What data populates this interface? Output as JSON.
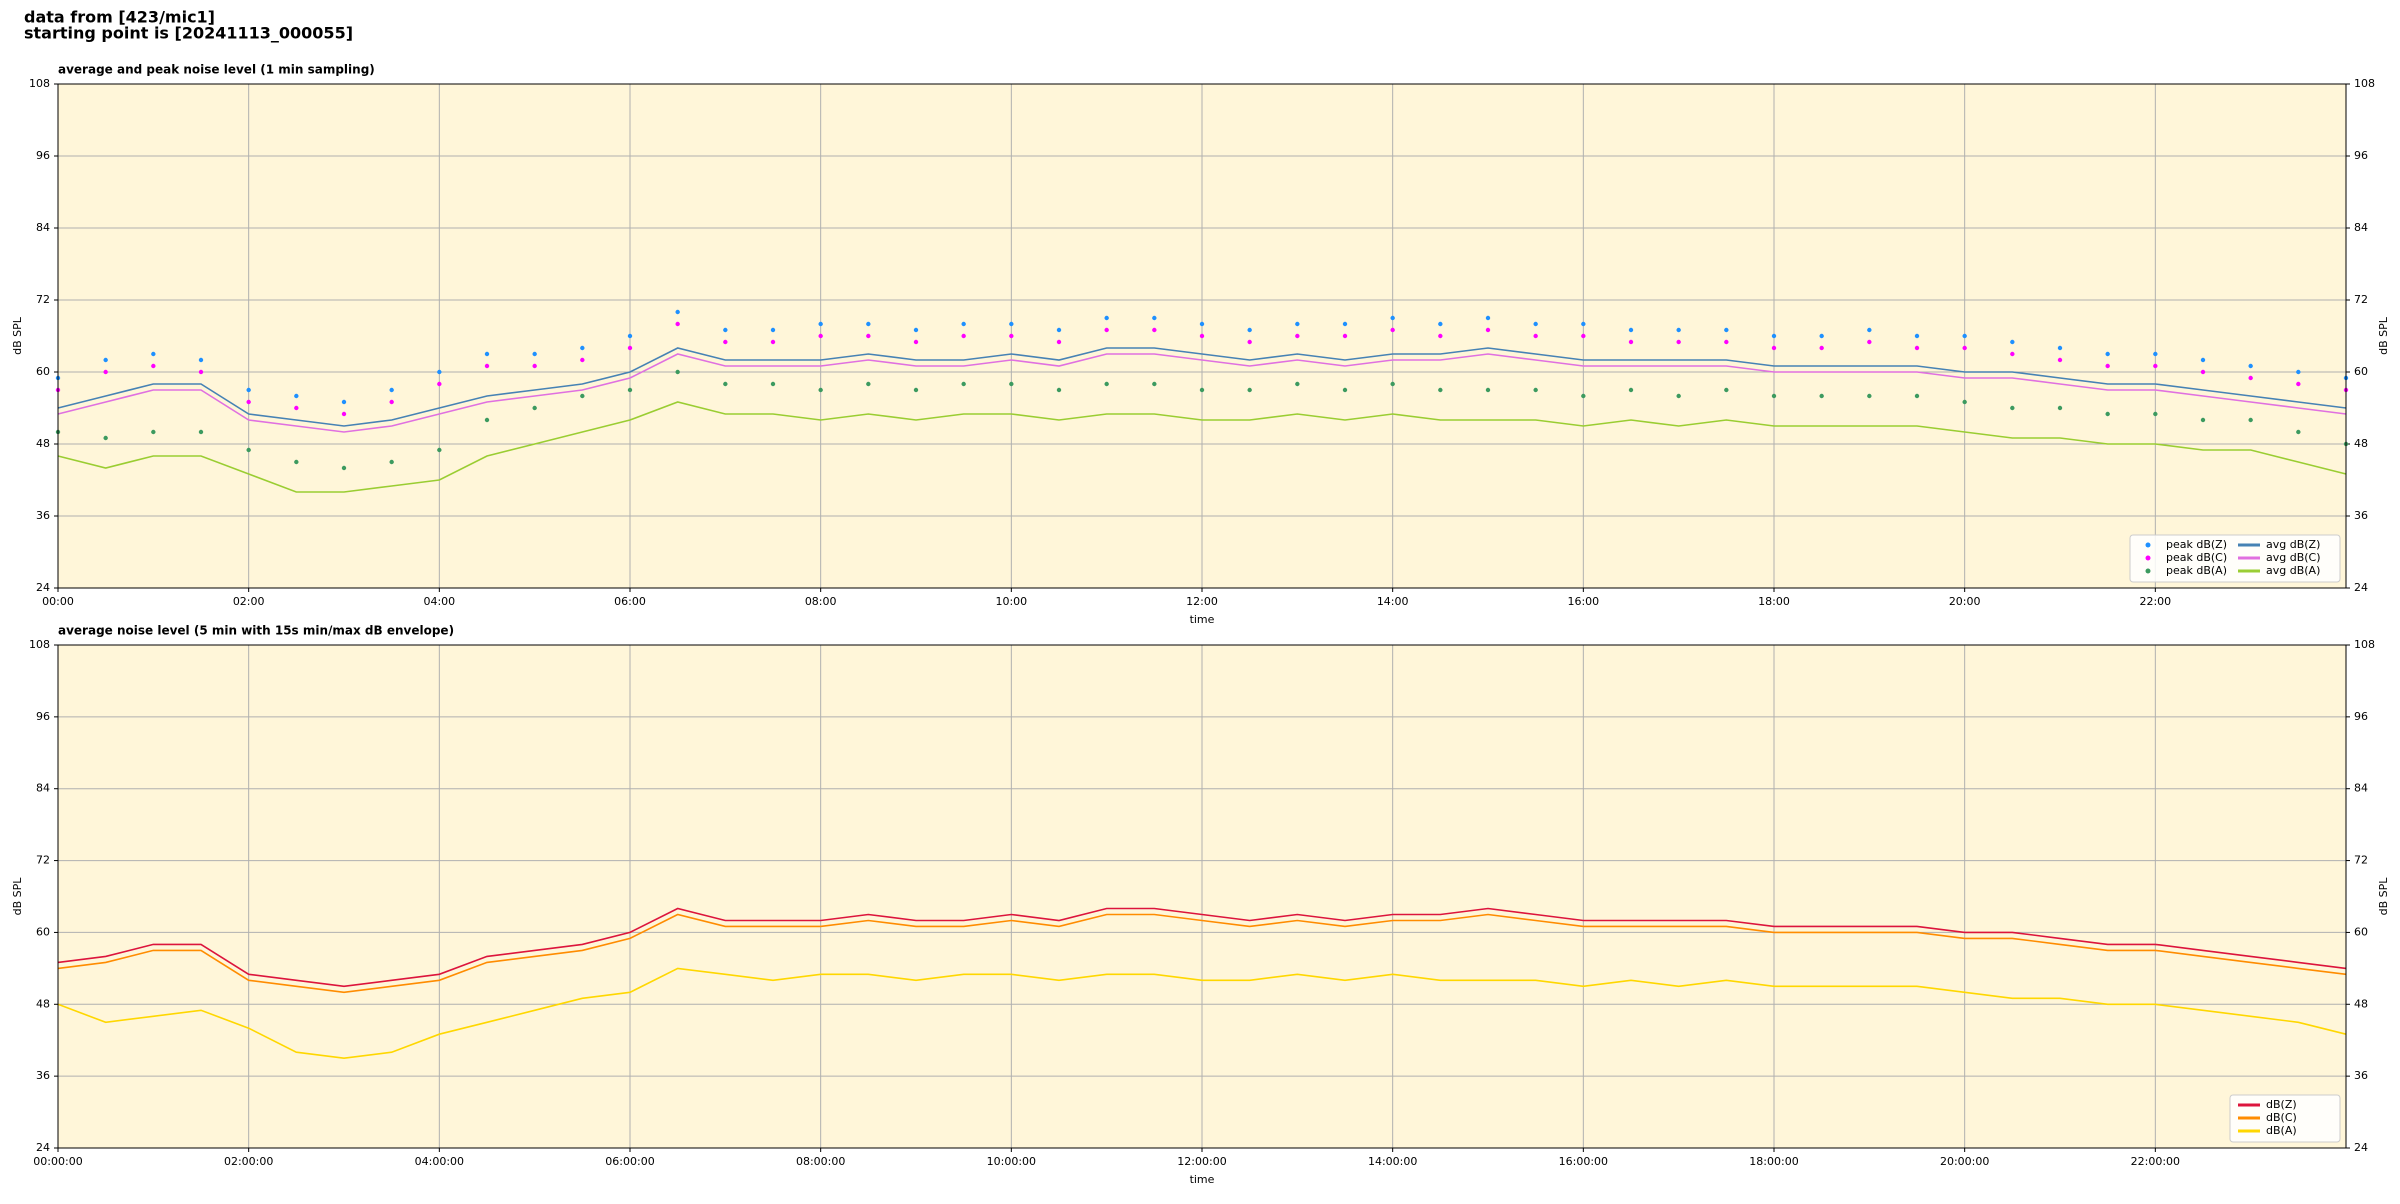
{
  "header": {
    "line1": "data from [423/mic1]",
    "line2": "starting point is [20241113_000055]"
  },
  "chart_data": [
    {
      "type": "line",
      "title": "average and peak noise level (1 min sampling)",
      "xlabel": "time",
      "ylabel": "dB SPL",
      "x": [
        0,
        0.5,
        1,
        1.5,
        2,
        2.5,
        3,
        3.5,
        4,
        4.5,
        5,
        5.5,
        6,
        6.5,
        7,
        7.5,
        8,
        8.5,
        9,
        9.5,
        10,
        10.5,
        11,
        11.5,
        12,
        12.5,
        13,
        13.5,
        14,
        14.5,
        15,
        15.5,
        16,
        16.5,
        17,
        17.5,
        18,
        18.5,
        19,
        19.5,
        20,
        20.5,
        21,
        21.5,
        22,
        22.5,
        23,
        23.5,
        24
      ],
      "xlim": [
        0,
        24
      ],
      "xticks": [
        {
          "value": 0,
          "label": "00:00"
        },
        {
          "value": 2,
          "label": "02:00"
        },
        {
          "value": 4,
          "label": "04:00"
        },
        {
          "value": 6,
          "label": "06:00"
        },
        {
          "value": 8,
          "label": "08:00"
        },
        {
          "value": 10,
          "label": "10:00"
        },
        {
          "value": 12,
          "label": "12:00"
        },
        {
          "value": 14,
          "label": "14:00"
        },
        {
          "value": 16,
          "label": "16:00"
        },
        {
          "value": 18,
          "label": "18:00"
        },
        {
          "value": 20,
          "label": "20:00"
        },
        {
          "value": 22,
          "label": "22:00"
        }
      ],
      "ylim": [
        24,
        108
      ],
      "yticks": [
        24,
        36,
        48,
        60,
        72,
        84,
        96,
        108
      ],
      "grid": true,
      "legend": "lower right",
      "legend_columns": 2,
      "series": [
        {
          "name": "peak dB(Z)",
          "kind": "scatter",
          "color": "#1e90ff",
          "values": [
            59,
            62,
            63,
            62,
            57,
            56,
            55,
            57,
            60,
            63,
            63,
            64,
            66,
            70,
            67,
            67,
            68,
            68,
            67,
            68,
            68,
            67,
            69,
            69,
            68,
            67,
            68,
            68,
            69,
            68,
            69,
            68,
            68,
            67,
            67,
            67,
            66,
            66,
            67,
            66,
            66,
            65,
            64,
            63,
            63,
            62,
            61,
            60,
            59
          ]
        },
        {
          "name": "peak dB(C)",
          "kind": "scatter",
          "color": "#ff00ff",
          "values": [
            57,
            60,
            61,
            60,
            55,
            54,
            53,
            55,
            58,
            61,
            61,
            62,
            64,
            68,
            65,
            65,
            66,
            66,
            65,
            66,
            66,
            65,
            67,
            67,
            66,
            65,
            66,
            66,
            67,
            66,
            67,
            66,
            66,
            65,
            65,
            65,
            64,
            64,
            65,
            64,
            64,
            63,
            62,
            61,
            61,
            60,
            59,
            58,
            57
          ]
        },
        {
          "name": "peak dB(A)",
          "kind": "scatter",
          "color": "#3c9a5f",
          "values": [
            50,
            49,
            50,
            50,
            47,
            45,
            44,
            45,
            47,
            52,
            54,
            56,
            57,
            60,
            58,
            58,
            57,
            58,
            57,
            58,
            58,
            57,
            58,
            58,
            57,
            57,
            58,
            57,
            58,
            57,
            57,
            57,
            56,
            57,
            56,
            57,
            56,
            56,
            56,
            56,
            55,
            54,
            54,
            53,
            53,
            52,
            52,
            50,
            48
          ]
        },
        {
          "name": "avg dB(Z)",
          "kind": "line",
          "color": "#4682b4",
          "values": [
            54,
            56,
            58,
            58,
            53,
            52,
            51,
            52,
            54,
            56,
            57,
            58,
            60,
            64,
            62,
            62,
            62,
            63,
            62,
            62,
            63,
            62,
            64,
            64,
            63,
            62,
            63,
            62,
            63,
            63,
            64,
            63,
            62,
            62,
            62,
            62,
            61,
            61,
            61,
            61,
            60,
            60,
            59,
            58,
            58,
            57,
            56,
            55,
            54
          ]
        },
        {
          "name": "avg dB(C)",
          "kind": "line",
          "color": "#e070e0",
          "values": [
            53,
            55,
            57,
            57,
            52,
            51,
            50,
            51,
            53,
            55,
            56,
            57,
            59,
            63,
            61,
            61,
            61,
            62,
            61,
            61,
            62,
            61,
            63,
            63,
            62,
            61,
            62,
            61,
            62,
            62,
            63,
            62,
            61,
            61,
            61,
            61,
            60,
            60,
            60,
            60,
            59,
            59,
            58,
            57,
            57,
            56,
            55,
            54,
            53
          ]
        },
        {
          "name": "avg dB(A)",
          "kind": "line",
          "color": "#9acd32",
          "values": [
            46,
            44,
            46,
            46,
            43,
            40,
            40,
            41,
            42,
            46,
            48,
            50,
            52,
            55,
            53,
            53,
            52,
            53,
            52,
            53,
            53,
            52,
            53,
            53,
            52,
            52,
            53,
            52,
            53,
            52,
            52,
            52,
            51,
            52,
            51,
            52,
            51,
            51,
            51,
            51,
            50,
            49,
            49,
            48,
            48,
            47,
            47,
            45,
            43
          ]
        }
      ]
    },
    {
      "type": "line",
      "title": "average noise level (5 min with 15s min/max dB envelope)",
      "xlabel": "time",
      "ylabel": "dB SPL",
      "x": [
        0,
        0.5,
        1,
        1.5,
        2,
        2.5,
        3,
        3.5,
        4,
        4.5,
        5,
        5.5,
        6,
        6.5,
        7,
        7.5,
        8,
        8.5,
        9,
        9.5,
        10,
        10.5,
        11,
        11.5,
        12,
        12.5,
        13,
        13.5,
        14,
        14.5,
        15,
        15.5,
        16,
        16.5,
        17,
        17.5,
        18,
        18.5,
        19,
        19.5,
        20,
        20.5,
        21,
        21.5,
        22,
        22.5,
        23,
        23.5,
        24
      ],
      "xlim": [
        0,
        24
      ],
      "xticks": [
        {
          "value": 0,
          "label": "00:00:00"
        },
        {
          "value": 2,
          "label": "02:00:00"
        },
        {
          "value": 4,
          "label": "04:00:00"
        },
        {
          "value": 6,
          "label": "06:00:00"
        },
        {
          "value": 8,
          "label": "08:00:00"
        },
        {
          "value": 10,
          "label": "10:00:00"
        },
        {
          "value": 12,
          "label": "12:00:00"
        },
        {
          "value": 14,
          "label": "14:00:00"
        },
        {
          "value": 16,
          "label": "16:00:00"
        },
        {
          "value": 18,
          "label": "18:00:00"
        },
        {
          "value": 20,
          "label": "20:00:00"
        },
        {
          "value": 22,
          "label": "22:00:00"
        }
      ],
      "ylim": [
        24,
        108
      ],
      "yticks": [
        24,
        36,
        48,
        60,
        72,
        84,
        96,
        108
      ],
      "grid": true,
      "legend": "lower right",
      "legend_columns": 1,
      "series": [
        {
          "name": "dB(Z)",
          "kind": "line",
          "color": "#dc143c",
          "values": [
            55,
            56,
            58,
            58,
            53,
            52,
            51,
            52,
            53,
            56,
            57,
            58,
            60,
            64,
            62,
            62,
            62,
            63,
            62,
            62,
            63,
            62,
            64,
            64,
            63,
            62,
            63,
            62,
            63,
            63,
            64,
            63,
            62,
            62,
            62,
            62,
            61,
            61,
            61,
            61,
            60,
            60,
            59,
            58,
            58,
            57,
            56,
            55,
            54
          ]
        },
        {
          "name": "dB(C)",
          "kind": "line",
          "color": "#ff8c00",
          "values": [
            54,
            55,
            57,
            57,
            52,
            51,
            50,
            51,
            52,
            55,
            56,
            57,
            59,
            63,
            61,
            61,
            61,
            62,
            61,
            61,
            62,
            61,
            63,
            63,
            62,
            61,
            62,
            61,
            62,
            62,
            63,
            62,
            61,
            61,
            61,
            61,
            60,
            60,
            60,
            60,
            59,
            59,
            58,
            57,
            57,
            56,
            55,
            54,
            53
          ]
        },
        {
          "name": "dB(A)",
          "kind": "line",
          "color": "#ffd700",
          "values": [
            48,
            45,
            46,
            47,
            44,
            40,
            39,
            40,
            43,
            45,
            47,
            49,
            50,
            54,
            53,
            52,
            53,
            53,
            52,
            53,
            53,
            52,
            53,
            53,
            52,
            52,
            53,
            52,
            53,
            52,
            52,
            52,
            51,
            52,
            51,
            52,
            51,
            51,
            51,
            51,
            50,
            49,
            49,
            48,
            48,
            47,
            46,
            45,
            43
          ]
        }
      ]
    }
  ]
}
